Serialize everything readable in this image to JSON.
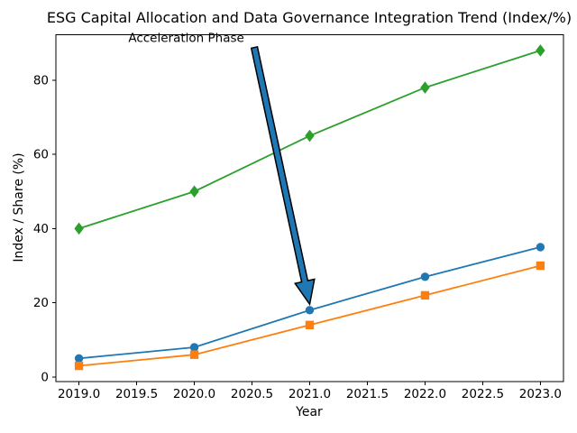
{
  "figure": {
    "background": "#ffffff",
    "text_color": "#000000",
    "spine_color": "#000000"
  },
  "chart_data": {
    "type": "line",
    "title": "ESG Capital Allocation and Data Governance Integration Trend (Index/%)",
    "xlabel": "Year",
    "ylabel": "Index / Share (%)",
    "x": [
      2019,
      2020,
      2021,
      2022,
      2023
    ],
    "x_tick_values": [
      2019.0,
      2019.5,
      2020.0,
      2020.5,
      2021.0,
      2021.5,
      2022.0,
      2022.5,
      2023.0
    ],
    "x_tick_labels": [
      "2019.0",
      "2019.5",
      "2020.0",
      "2020.5",
      "2021.0",
      "2021.5",
      "2022.0",
      "2022.5",
      "2023.0"
    ],
    "y_tick_values": [
      0,
      20,
      40,
      60,
      80
    ],
    "y_tick_labels": [
      "0",
      "20",
      "40",
      "60",
      "80"
    ],
    "xlim": [
      2018.8,
      2023.2
    ],
    "ylim": [
      -1.25,
      92.25
    ],
    "grid": false,
    "legend": "none",
    "series": [
      {
        "name": "green-diamond-series",
        "marker": "diamond",
        "color": "#2ca02c",
        "values": [
          40,
          50,
          65,
          78,
          88
        ]
      },
      {
        "name": "blue-circle-series",
        "marker": "circle",
        "color": "#1f77b4",
        "values": [
          5,
          8,
          18,
          27,
          35
        ]
      },
      {
        "name": "orange-square-series",
        "marker": "square",
        "color": "#ff7f0e",
        "values": [
          3,
          6,
          14,
          22,
          30
        ]
      }
    ],
    "annotation": {
      "text": "Acceleration Phase",
      "text_pos": [
        2019.93,
        91.4
      ],
      "arrow_tail": [
        2020.52,
        88.8
      ],
      "arrow_tip": [
        2021.0,
        19.6
      ],
      "arrow_fill": "#1f77b4",
      "arrow_edge": "#000000"
    }
  }
}
